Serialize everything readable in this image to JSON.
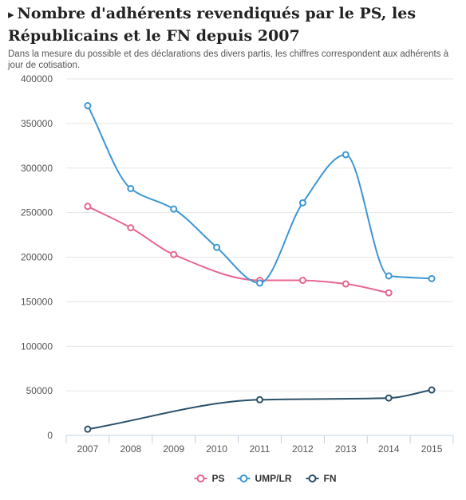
{
  "header": {
    "title_arrow": "▸",
    "title": "Nombre d'adhérents revendiqués par le PS, les Républicains et le FN depuis 2007",
    "subtitle": "Dans la mesure du possible et des déclarations des divers partis, les chiffres correspondent aux adhérents à jour de cotisation."
  },
  "chart_data": {
    "type": "line",
    "title": "Nombre d'adhérents revendiqués par le PS, les Républicains et le FN depuis 2007",
    "subtitle": "Dans la mesure du possible et des déclarations des divers partis, les chiffres correspondent aux adhérents à jour de cotisation.",
    "xlabel": "",
    "ylabel": "",
    "categories": [
      "2007",
      "2008",
      "2009",
      "2010",
      "2011",
      "2012",
      "2013",
      "2014",
      "2015"
    ],
    "ylim": [
      0,
      400000
    ],
    "yticks": [
      0,
      50000,
      100000,
      150000,
      200000,
      250000,
      300000,
      350000,
      400000
    ],
    "grid": true,
    "legend_position": "bottom",
    "series": [
      {
        "name": "PS",
        "color": "#e8668e",
        "values": [
          257000,
          233000,
          203000,
          null,
          174000,
          174000,
          170000,
          160000,
          null
        ]
      },
      {
        "name": "UMP/LR",
        "color": "#3d97d3",
        "values": [
          370000,
          277000,
          254000,
          211000,
          171000,
          261000,
          315000,
          179000,
          176000
        ]
      },
      {
        "name": "FN",
        "color": "#2b4f69",
        "values": [
          7000,
          null,
          null,
          null,
          40000,
          null,
          null,
          42000,
          51000
        ]
      }
    ]
  }
}
